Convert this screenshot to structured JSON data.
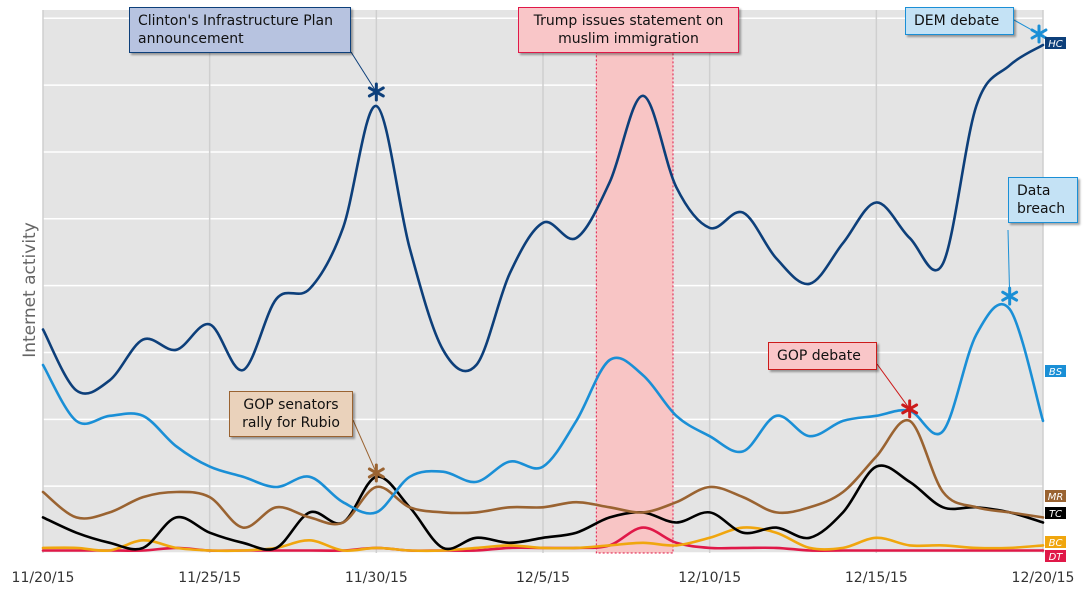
{
  "chart_data": {
    "type": "line",
    "title": "",
    "ylabel": "Internet activity",
    "xlabel": "",
    "x_range": [
      "11/20/15",
      "12/20/15"
    ],
    "ylim": [
      0,
      100
    ],
    "grid": true,
    "x_ticks": [
      "11/20/15",
      "11/25/15",
      "11/30/15",
      "12/5/15",
      "12/10/15",
      "12/15/15",
      "12/20/15"
    ],
    "x_tick_days": [
      0,
      5,
      10,
      15,
      20,
      25,
      30
    ],
    "series": [
      {
        "name": "HC",
        "color": "#0d3f7a",
        "points": [
          [
            0,
            44
          ],
          [
            1,
            32
          ],
          [
            2,
            34
          ],
          [
            3,
            42
          ],
          [
            4,
            40
          ],
          [
            5,
            45
          ],
          [
            6,
            36
          ],
          [
            7,
            50
          ],
          [
            8,
            52
          ],
          [
            9,
            64
          ],
          [
            10,
            88
          ],
          [
            11,
            60
          ],
          [
            12,
            40
          ],
          [
            13,
            37
          ],
          [
            14,
            55
          ],
          [
            15,
            65
          ],
          [
            16,
            62
          ],
          [
            17,
            73
          ],
          [
            18,
            90
          ],
          [
            19,
            72
          ],
          [
            20,
            64
          ],
          [
            21,
            67
          ],
          [
            22,
            58
          ],
          [
            23,
            53
          ],
          [
            24,
            61
          ],
          [
            25,
            69
          ],
          [
            26,
            62
          ],
          [
            27,
            57
          ],
          [
            28,
            88
          ],
          [
            29,
            96
          ],
          [
            30,
            100
          ]
        ]
      },
      {
        "name": "BS",
        "color": "#1a8fd6",
        "points": [
          [
            0,
            37
          ],
          [
            1,
            26
          ],
          [
            2,
            27
          ],
          [
            3,
            27
          ],
          [
            4,
            21
          ],
          [
            5,
            17
          ],
          [
            6,
            15
          ],
          [
            7,
            13
          ],
          [
            8,
            15
          ],
          [
            9,
            10
          ],
          [
            10,
            8
          ],
          [
            11,
            15
          ],
          [
            12,
            16
          ],
          [
            13,
            14
          ],
          [
            14,
            18
          ],
          [
            15,
            17
          ],
          [
            16,
            26
          ],
          [
            17,
            38
          ],
          [
            18,
            35
          ],
          [
            19,
            27
          ],
          [
            20,
            23
          ],
          [
            21,
            20
          ],
          [
            22,
            27
          ],
          [
            23,
            23
          ],
          [
            24,
            26
          ],
          [
            25,
            27
          ],
          [
            26,
            28
          ],
          [
            27,
            24
          ],
          [
            28,
            43
          ],
          [
            29,
            48
          ],
          [
            30,
            26
          ]
        ]
      },
      {
        "name": "MR",
        "color": "#9a6331",
        "points": [
          [
            0,
            12
          ],
          [
            1,
            7
          ],
          [
            2,
            8
          ],
          [
            3,
            11
          ],
          [
            4,
            12
          ],
          [
            5,
            11
          ],
          [
            6,
            5
          ],
          [
            7,
            9
          ],
          [
            8,
            7
          ],
          [
            9,
            6
          ],
          [
            10,
            13
          ],
          [
            11,
            9
          ],
          [
            12,
            8
          ],
          [
            13,
            8
          ],
          [
            14,
            9
          ],
          [
            15,
            9
          ],
          [
            16,
            10
          ],
          [
            17,
            9
          ],
          [
            18,
            8
          ],
          [
            19,
            10
          ],
          [
            20,
            13
          ],
          [
            21,
            11
          ],
          [
            22,
            8
          ],
          [
            23,
            9
          ],
          [
            24,
            12
          ],
          [
            25,
            19
          ],
          [
            26,
            26
          ],
          [
            27,
            12
          ],
          [
            28,
            9
          ],
          [
            29,
            8
          ],
          [
            30,
            7
          ]
        ]
      },
      {
        "name": "TC",
        "color": "#000000",
        "points": [
          [
            0,
            7
          ],
          [
            1,
            4
          ],
          [
            2,
            2
          ],
          [
            3,
            1
          ],
          [
            4,
            7
          ],
          [
            5,
            4
          ],
          [
            6,
            2
          ],
          [
            7,
            1
          ],
          [
            8,
            8
          ],
          [
            9,
            6
          ],
          [
            10,
            15
          ],
          [
            11,
            9
          ],
          [
            12,
            1
          ],
          [
            13,
            3
          ],
          [
            14,
            2
          ],
          [
            15,
            3
          ],
          [
            16,
            4
          ],
          [
            17,
            7
          ],
          [
            18,
            8
          ],
          [
            19,
            6
          ],
          [
            20,
            8
          ],
          [
            21,
            4
          ],
          [
            22,
            5
          ],
          [
            23,
            3
          ],
          [
            24,
            8
          ],
          [
            25,
            17
          ],
          [
            26,
            14
          ],
          [
            27,
            9
          ],
          [
            28,
            9
          ],
          [
            29,
            8
          ],
          [
            30,
            6
          ]
        ]
      },
      {
        "name": "BC",
        "color": "#f0a60e",
        "points": [
          [
            0,
            1
          ],
          [
            1,
            1
          ],
          [
            2,
            0.5
          ],
          [
            3,
            2.5
          ],
          [
            4,
            1
          ],
          [
            5,
            0.5
          ],
          [
            6,
            0.5
          ],
          [
            7,
            1
          ],
          [
            8,
            2.5
          ],
          [
            9,
            0.5
          ],
          [
            10,
            1
          ],
          [
            11,
            0.5
          ],
          [
            12,
            0.5
          ],
          [
            13,
            1
          ],
          [
            14,
            1.5
          ],
          [
            15,
            1
          ],
          [
            16,
            1
          ],
          [
            17,
            1.5
          ],
          [
            18,
            2
          ],
          [
            19,
            1.5
          ],
          [
            20,
            3
          ],
          [
            21,
            5
          ],
          [
            22,
            4
          ],
          [
            23,
            1
          ],
          [
            24,
            1
          ],
          [
            25,
            3
          ],
          [
            26,
            1.5
          ],
          [
            27,
            1.5
          ],
          [
            28,
            1
          ],
          [
            29,
            1
          ],
          [
            30,
            1.5
          ]
        ]
      },
      {
        "name": "DT",
        "color": "#e01848",
        "points": [
          [
            0,
            0.5
          ],
          [
            1,
            0.5
          ],
          [
            2,
            0.5
          ],
          [
            3,
            0.5
          ],
          [
            4,
            1
          ],
          [
            5,
            0.5
          ],
          [
            6,
            0.5
          ],
          [
            7,
            0.5
          ],
          [
            8,
            0.5
          ],
          [
            9,
            0.5
          ],
          [
            10,
            1
          ],
          [
            11,
            0.5
          ],
          [
            12,
            0.5
          ],
          [
            13,
            0.5
          ],
          [
            14,
            1
          ],
          [
            15,
            1
          ],
          [
            16,
            1
          ],
          [
            17,
            1.5
          ],
          [
            18,
            5
          ],
          [
            19,
            2
          ],
          [
            20,
            1
          ],
          [
            21,
            1
          ],
          [
            22,
            1
          ],
          [
            23,
            0.5
          ],
          [
            24,
            0.5
          ],
          [
            25,
            0.5
          ],
          [
            26,
            0.5
          ],
          [
            27,
            0.5
          ],
          [
            28,
            0.5
          ],
          [
            29,
            0.5
          ],
          [
            30,
            0.5
          ]
        ]
      }
    ],
    "shaded_range": {
      "from": 16.6,
      "to": 18.9,
      "color": "#f8c5c5"
    },
    "annotations": [
      {
        "lines": [
          "Clinton's Infrastructure Plan",
          "announcement"
        ],
        "target_series": "HC",
        "target_x": 10,
        "marker_color": "#0d3f7a",
        "box_fill": "#b7c3e0",
        "box_border": "#0d3f7a"
      },
      {
        "lines": [
          "Trump issues statement on",
          "muslim immigration"
        ],
        "target_series": null,
        "target_x": null,
        "marker_color": null,
        "box_fill": "#f9c6c8",
        "box_border": "#e01848"
      },
      {
        "lines": [
          "DEM debate"
        ],
        "target_series": "HC",
        "target_x": 30,
        "marker_color": "#1a8fd6",
        "box_fill": "#c4e2f5",
        "box_border": "#1a8fd6"
      },
      {
        "lines": [
          "Data",
          "breach"
        ],
        "target_series": "BS",
        "target_x": 29,
        "marker_color": "#1a8fd6",
        "box_fill": "#c4e2f5",
        "box_border": "#1a8fd6"
      },
      {
        "lines": [
          "GOP debate"
        ],
        "target_series": "MR",
        "target_x": 26,
        "marker_color": "#cc1a1a",
        "box_fill": "#f9c6c8",
        "box_border": "#cc1a1a"
      },
      {
        "lines": [
          "GOP senators",
          "rally for Rubio"
        ],
        "target_series": "MR",
        "target_x": 10,
        "marker_color": "#9a6331",
        "box_fill": "#ead2bb",
        "box_border": "#9a6331"
      }
    ]
  }
}
